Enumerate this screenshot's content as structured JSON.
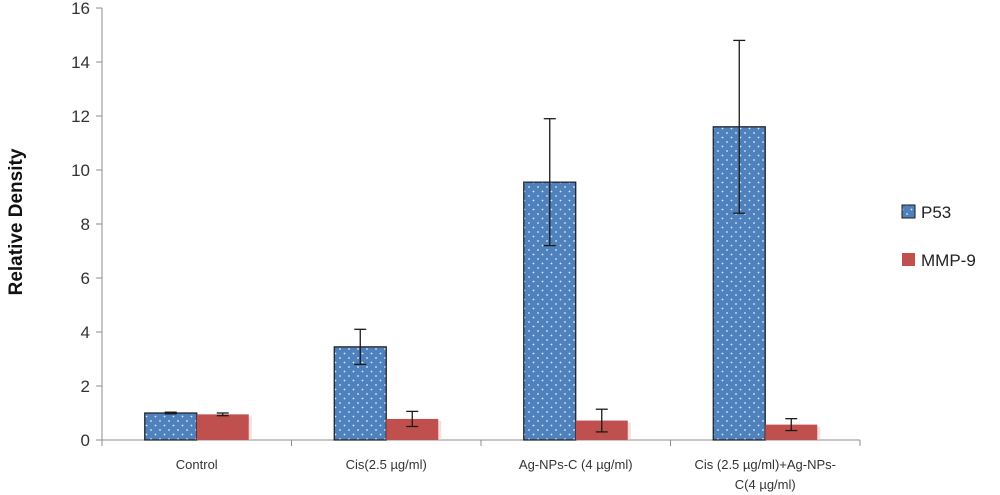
{
  "chart_data": {
    "type": "bar",
    "categories": [
      [
        "Control"
      ],
      [
        "Cis(2.5  µg/ml)"
      ],
      [
        "Ag-NPs-C (4 µg/ml)"
      ],
      [
        "Cis (2.5  µg/ml)+Ag-NPs-",
        "C(4  µg/ml)"
      ]
    ],
    "series": [
      {
        "name": "P53",
        "values": [
          1.0,
          3.45,
          9.55,
          11.6
        ],
        "errors": [
          0.03,
          0.65,
          2.35,
          3.2
        ],
        "color": "#4f81bd",
        "pattern": "dotted"
      },
      {
        "name": "MMP-9",
        "values": [
          0.95,
          0.78,
          0.72,
          0.57
        ],
        "errors": [
          0.05,
          0.28,
          0.42,
          0.22
        ],
        "color": "#c0504d",
        "pattern": "solid"
      }
    ],
    "ylabel": "Relative Density",
    "xlabel": "",
    "ylim": [
      0,
      16
    ],
    "yticks": [
      0,
      2,
      4,
      6,
      8,
      10,
      12,
      14,
      16
    ],
    "grid": false,
    "legend_position": "right"
  }
}
